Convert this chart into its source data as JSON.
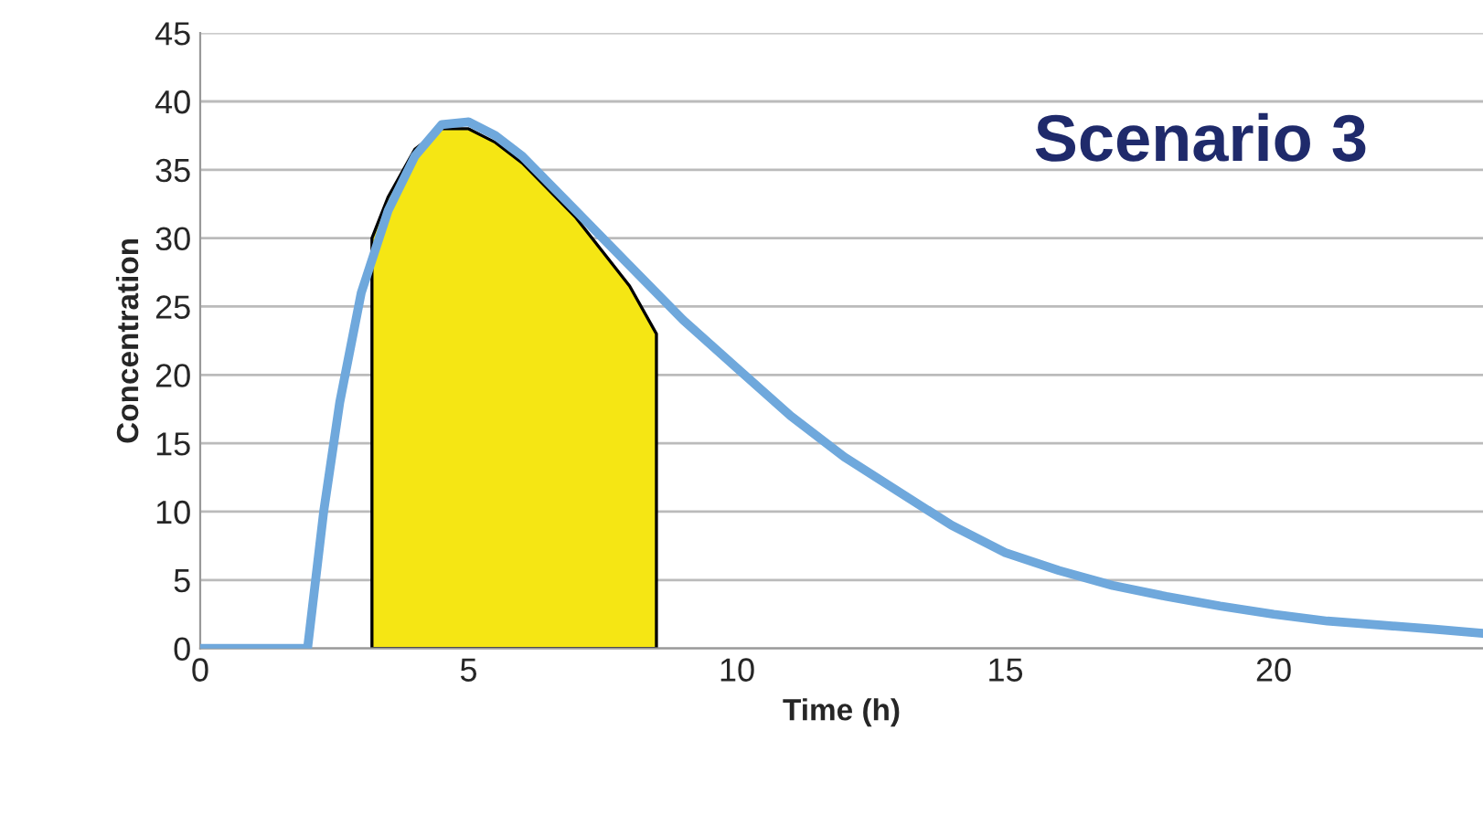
{
  "chart_data": {
    "type": "line",
    "xlabel": "Time (h)",
    "ylabel": "Concentration",
    "annotations": [
      "Scenario 3"
    ],
    "series": [
      {
        "type": "area",
        "color": "#f5e614",
        "x": [
          3.2,
          3.5,
          4,
          4.5,
          5,
          5.5,
          6,
          7,
          8,
          8.5
        ],
        "values": [
          30,
          33,
          36.5,
          38,
          38,
          37,
          35.5,
          31.5,
          26.5,
          23
        ]
      },
      {
        "color": "#6fa8dc",
        "x": [
          0,
          2,
          2.3,
          2.6,
          3,
          3.5,
          4,
          4.5,
          5,
          5.5,
          6,
          7,
          8,
          9,
          10,
          11,
          12,
          13,
          14,
          15,
          16,
          17,
          18,
          19,
          20,
          21,
          22,
          23,
          23.9
        ],
        "values": [
          0,
          0,
          10,
          18,
          26,
          32,
          36,
          38.3,
          38.5,
          37.5,
          36,
          32,
          28,
          24,
          20.5,
          17,
          14,
          11.5,
          9,
          7,
          5.7,
          4.6,
          3.8,
          3.1,
          2.5,
          2,
          1.7,
          1.4,
          1.1
        ]
      }
    ],
    "xlim": [
      0,
      23.9
    ],
    "xticks": [
      0,
      5,
      10,
      15,
      20
    ],
    "ylim": [
      0,
      45
    ],
    "yticks": [
      0,
      5,
      10,
      15,
      20,
      25,
      30,
      35,
      40,
      45
    ],
    "grid": "y"
  }
}
